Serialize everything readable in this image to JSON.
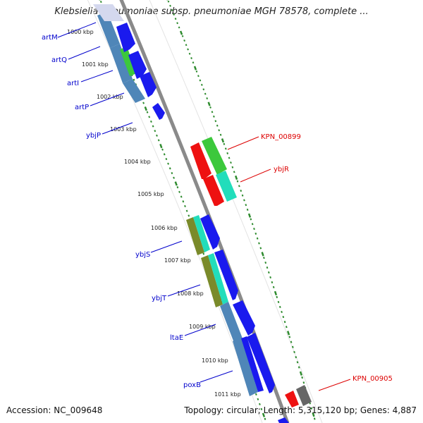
{
  "title": "Klebsiella pneumoniae subsp. pneumoniae MGH 78578, complete ...",
  "accession": "Accession: NC_009648",
  "summary": "Topology: circular; Length: 5,315,120 bp; Genes: 4,887",
  "colors": {
    "backbone": "#8a8a8a",
    "tick": "#2e8b2e",
    "label_forward": "#0000cc",
    "label_reverse": "#dd0000",
    "blue": "#1a1aee",
    "steelblue": "#4f86b8",
    "green": "#3cc83c",
    "red": "#ee1111",
    "cyan": "#22ddbb",
    "olive": "#7a8a2a",
    "gray": "#666666"
  },
  "scale_ticks": [
    "1000 kbp",
    "1001 kbp",
    "1002 kbp",
    "1003 kbp",
    "1004 kbp",
    "1005 kbp",
    "1006 kbp",
    "1007 kbp",
    "1008 kbp",
    "1009 kbp",
    "1010 kbp",
    "1011 kbp"
  ],
  "genes_forward": [
    "artM",
    "artQ",
    "artI",
    "artP",
    "ybjP",
    "ybjS",
    "ybjT",
    "ltaE",
    "poxB"
  ],
  "genes_reverse": [
    "KPN_00899",
    "ybjR",
    "KPN_00905"
  ]
}
